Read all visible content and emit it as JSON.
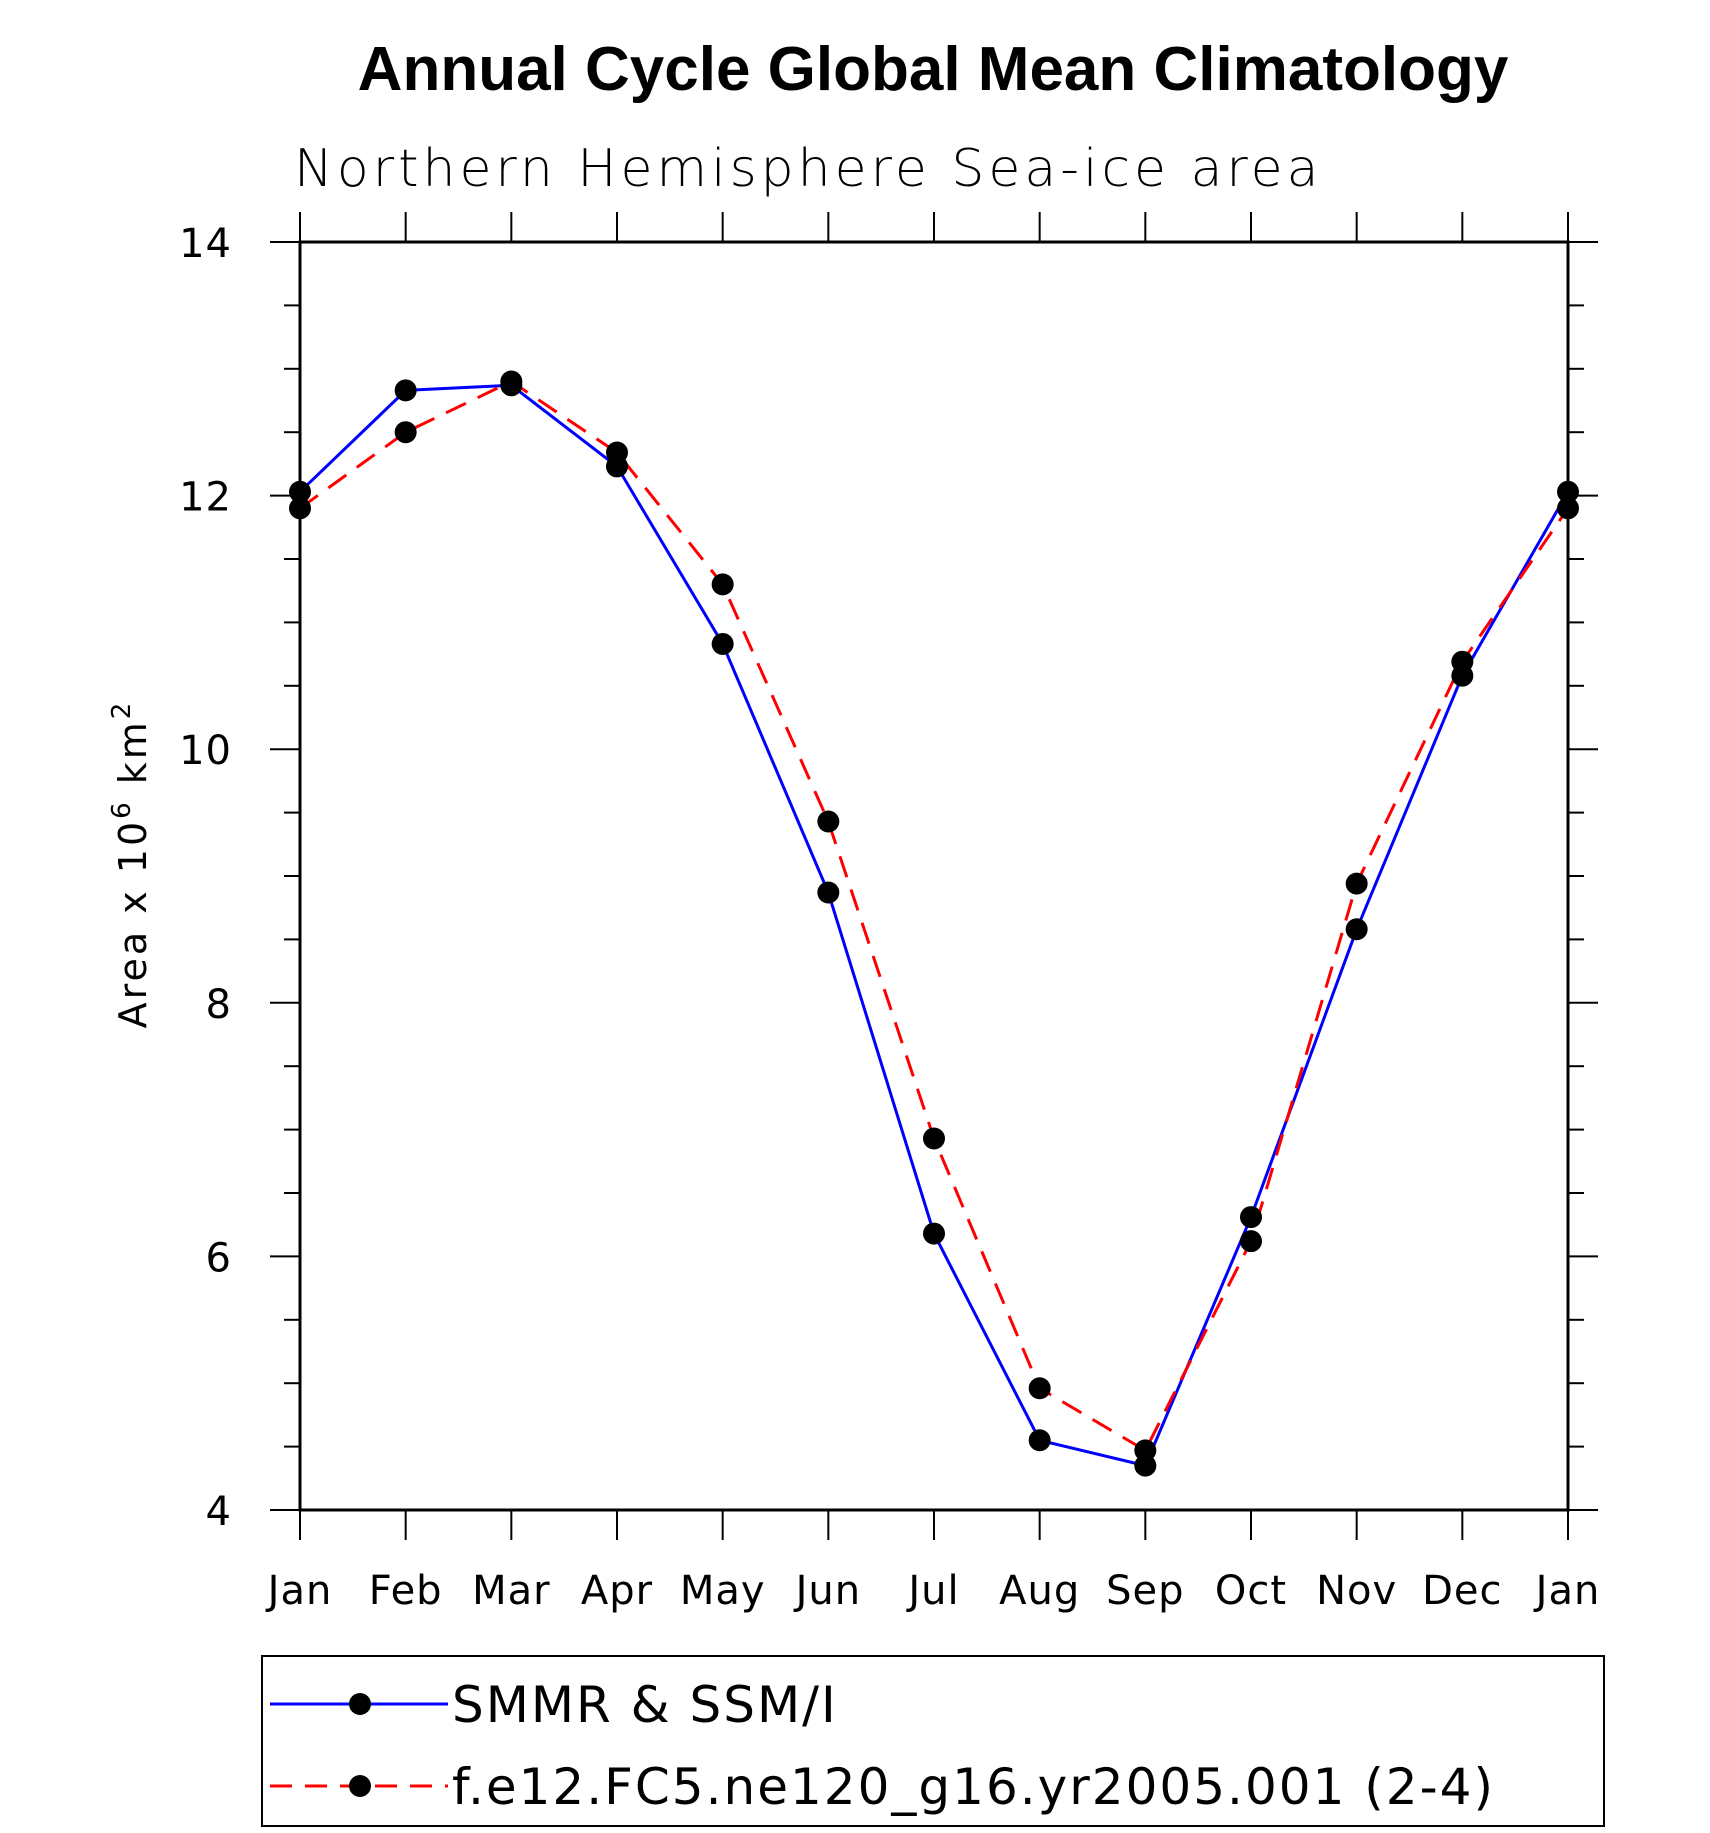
{
  "chart_data": {
    "type": "line",
    "title": "Annual Cycle Global Mean Climatology",
    "subtitle": "Northern Hemisphere Sea-ice area",
    "ylabel_main": "Area x 10",
    "ylabel_sup1": "6",
    "ylabel_unit": " km",
    "ylabel_sup2": "2",
    "xlabel": "",
    "ylim": [
      4,
      14
    ],
    "yticks": [
      4,
      6,
      8,
      10,
      12,
      14
    ],
    "yminor_step": 0.5,
    "categories": [
      "Jan",
      "Feb",
      "Mar",
      "Apr",
      "May",
      "Jun",
      "Jul",
      "Aug",
      "Sep",
      "Oct",
      "Nov",
      "Dec",
      "Jan"
    ],
    "series": [
      {
        "name": "SMMR & SSM/I",
        "color": "#0000ff",
        "dash": "solid",
        "values": [
          12.03,
          12.83,
          12.87,
          12.23,
          10.83,
          8.87,
          6.18,
          4.55,
          4.35,
          6.31,
          8.58,
          10.58,
          12.03
        ]
      },
      {
        "name": "f.e12.FC5.ne120_g16.yr2005.001 (2-4)",
        "color": "#ff0000",
        "dash": "dashed",
        "values": [
          11.9,
          12.5,
          12.9,
          12.34,
          11.3,
          9.43,
          6.93,
          4.96,
          4.47,
          6.12,
          8.94,
          10.69,
          11.9
        ]
      }
    ],
    "legend_position": "bottom",
    "marker_color": "#000000"
  }
}
